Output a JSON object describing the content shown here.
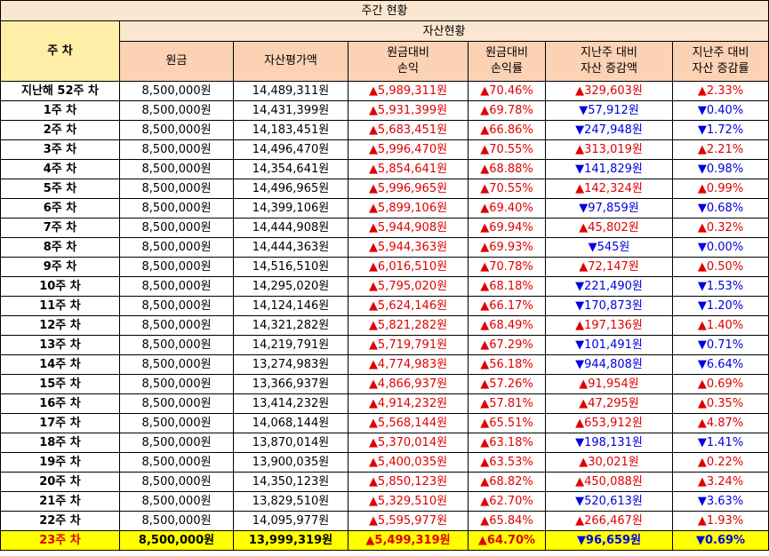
{
  "title": "주간 현황",
  "header": {
    "week_label": "주 차",
    "group_label": "자산현황",
    "columns": [
      "원금",
      "자산평가액",
      "원금대비\n손익",
      "원금대비\n손익률",
      "지난주 대비\n자산 증감액",
      "지난주 대비\n자산 증감률"
    ]
  },
  "colors": {
    "up": "#e00000",
    "down": "#0000e0",
    "highlight": "#ffff00",
    "title_bg": "#fbe6cf",
    "column_bg": "#fbd2b4",
    "week_header_bg": "#ffeea8"
  },
  "rows": [
    [
      "지난해 52주 차",
      "8,500,000원",
      "14,489,311원",
      "▲5,989,311원",
      "▲70.46%",
      "▲329,603원",
      "▲2.33%"
    ],
    [
      "1주 차",
      "8,500,000원",
      "14,431,399원",
      "▲5,931,399원",
      "▲69.78%",
      "▼57,912원",
      "▼0.40%"
    ],
    [
      "2주 차",
      "8,500,000원",
      "14,183,451원",
      "▲5,683,451원",
      "▲66.86%",
      "▼247,948원",
      "▼1.72%"
    ],
    [
      "3주 차",
      "8,500,000원",
      "14,496,470원",
      "▲5,996,470원",
      "▲70.55%",
      "▲313,019원",
      "▲2.21%"
    ],
    [
      "4주 차",
      "8,500,000원",
      "14,354,641원",
      "▲5,854,641원",
      "▲68.88%",
      "▼141,829원",
      "▼0.98%"
    ],
    [
      "5주 차",
      "8,500,000원",
      "14,496,965원",
      "▲5,996,965원",
      "▲70.55%",
      "▲142,324원",
      "▲0.99%"
    ],
    [
      "6주 차",
      "8,500,000원",
      "14,399,106원",
      "▲5,899,106원",
      "▲69.40%",
      "▼97,859원",
      "▼0.68%"
    ],
    [
      "7주 차",
      "8,500,000원",
      "14,444,908원",
      "▲5,944,908원",
      "▲69.94%",
      "▲45,802원",
      "▲0.32%"
    ],
    [
      "8주 차",
      "8,500,000원",
      "14,444,363원",
      "▲5,944,363원",
      "▲69.93%",
      "▼545원",
      "▼0.00%"
    ],
    [
      "9주 차",
      "8,500,000원",
      "14,516,510원",
      "▲6,016,510원",
      "▲70.78%",
      "▲72,147원",
      "▲0.50%"
    ],
    [
      "10주 차",
      "8,500,000원",
      "14,295,020원",
      "▲5,795,020원",
      "▲68.18%",
      "▼221,490원",
      "▼1.53%"
    ],
    [
      "11주 차",
      "8,500,000원",
      "14,124,146원",
      "▲5,624,146원",
      "▲66.17%",
      "▼170,873원",
      "▼1.20%"
    ],
    [
      "12주 차",
      "8,500,000원",
      "14,321,282원",
      "▲5,821,282원",
      "▲68.49%",
      "▲197,136원",
      "▲1.40%"
    ],
    [
      "13주 차",
      "8,500,000원",
      "14,219,791원",
      "▲5,719,791원",
      "▲67.29%",
      "▼101,491원",
      "▼0.71%"
    ],
    [
      "14주 차",
      "8,500,000원",
      "13,274,983원",
      "▲4,774,983원",
      "▲56.18%",
      "▼944,808원",
      "▼6.64%"
    ],
    [
      "15주 차",
      "8,500,000원",
      "13,366,937원",
      "▲4,866,937원",
      "▲57.26%",
      "▲91,954원",
      "▲0.69%"
    ],
    [
      "16주 차",
      "8,500,000원",
      "13,414,232원",
      "▲4,914,232원",
      "▲57.81%",
      "▲47,295원",
      "▲0.35%"
    ],
    [
      "17주 차",
      "8,500,000원",
      "14,068,144원",
      "▲5,568,144원",
      "▲65.51%",
      "▲653,912원",
      "▲4.87%"
    ],
    [
      "18주 차",
      "8,500,000원",
      "13,870,014원",
      "▲5,370,014원",
      "▲63.18%",
      "▼198,131원",
      "▼1.41%"
    ],
    [
      "19주 차",
      "8,500,000원",
      "13,900,035원",
      "▲5,400,035원",
      "▲63.53%",
      "▲30,021원",
      "▲0.22%"
    ],
    [
      "20주 차",
      "8,500,000원",
      "14,350,123원",
      "▲5,850,123원",
      "▲68.82%",
      "▲450,088원",
      "▲3.24%"
    ],
    [
      "21주 차",
      "8,500,000원",
      "13,829,510원",
      "▲5,329,510원",
      "▲62.70%",
      "▼520,613원",
      "▼3.63%"
    ],
    [
      "22주 차",
      "8,500,000원",
      "14,095,977원",
      "▲5,595,977원",
      "▲65.84%",
      "▲266,467원",
      "▲1.93%"
    ],
    [
      "23주 차",
      "8,500,000원",
      "13,999,319원",
      "▲5,499,319원",
      "▲64.70%",
      "▼96,659원",
      "▼0.69%"
    ]
  ]
}
